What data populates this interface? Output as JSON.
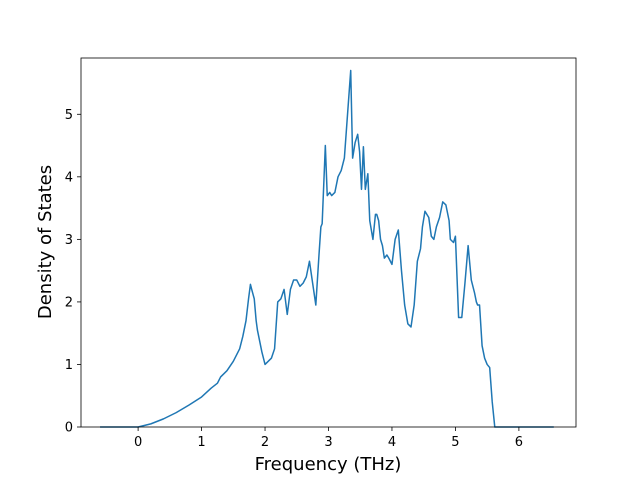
{
  "chart_data": {
    "type": "line",
    "title": "",
    "xlabel": "Frequency (THz)",
    "ylabel": "Density of States",
    "xlim": [
      -0.9,
      6.9
    ],
    "ylim": [
      0,
      5.9
    ],
    "xticks": [
      0,
      1,
      2,
      3,
      4,
      5,
      6
    ],
    "yticks": [
      0,
      1,
      2,
      3,
      4,
      5
    ],
    "grid": false,
    "legend": "none",
    "series": [
      {
        "color": "#1f77b4",
        "x": [
          -0.6,
          -0.3,
          0.0,
          0.2,
          0.4,
          0.6,
          0.8,
          1.0,
          1.15,
          1.25,
          1.3,
          1.4,
          1.5,
          1.6,
          1.65,
          1.7,
          1.74,
          1.77,
          1.79,
          1.83,
          1.86,
          1.88,
          1.92,
          1.95,
          2.0,
          2.05,
          2.1,
          2.15,
          2.2,
          2.25,
          2.3,
          2.35,
          2.4,
          2.45,
          2.5,
          2.55,
          2.6,
          2.65,
          2.7,
          2.75,
          2.8,
          2.85,
          2.88,
          2.9,
          2.95,
          2.98,
          3.02,
          3.05,
          3.1,
          3.15,
          3.2,
          3.25,
          3.3,
          3.35,
          3.38,
          3.42,
          3.46,
          3.49,
          3.52,
          3.55,
          3.58,
          3.62,
          3.65,
          3.7,
          3.72,
          3.74,
          3.76,
          3.79,
          3.82,
          3.85,
          3.88,
          3.92,
          3.95,
          4.0,
          4.05,
          4.1,
          4.15,
          4.2,
          4.25,
          4.3,
          4.35,
          4.4,
          4.45,
          4.48,
          4.52,
          4.58,
          4.62,
          4.66,
          4.7,
          4.75,
          4.8,
          4.85,
          4.9,
          4.92,
          4.97,
          5.0,
          5.05,
          5.1,
          5.15,
          5.2,
          5.25,
          5.3,
          5.33,
          5.35,
          5.38,
          5.42,
          5.46,
          5.5,
          5.54,
          5.58,
          5.62,
          5.65,
          5.68,
          5.72,
          5.76,
          5.8,
          5.84,
          5.87,
          5.89,
          5.92,
          5.96,
          6.2,
          6.55
        ],
        "y": [
          0.0,
          0.0,
          0.0,
          0.05,
          0.13,
          0.23,
          0.35,
          0.48,
          0.62,
          0.7,
          0.8,
          0.9,
          1.05,
          1.25,
          1.45,
          1.7,
          2.05,
          2.28,
          2.2,
          2.05,
          1.7,
          1.55,
          1.35,
          1.2,
          1.0,
          1.05,
          1.1,
          1.25,
          2.0,
          2.05,
          2.2,
          1.8,
          2.2,
          2.35,
          2.35,
          2.25,
          2.3,
          2.4,
          2.65,
          2.3,
          1.95,
          2.75,
          3.2,
          3.25,
          4.5,
          3.7,
          3.75,
          3.7,
          3.75,
          4.0,
          4.1,
          4.3,
          5.0,
          5.7,
          4.3,
          4.55,
          4.68,
          4.4,
          3.8,
          4.48,
          3.8,
          4.05,
          3.3,
          3.0,
          3.2,
          3.4,
          3.4,
          3.3,
          3.0,
          2.9,
          2.7,
          2.75,
          2.7,
          2.6,
          3.0,
          3.15,
          2.5,
          1.95,
          1.65,
          1.6,
          1.95,
          2.65,
          2.85,
          3.2,
          3.45,
          3.35,
          3.05,
          3.0,
          3.2,
          3.35,
          3.6,
          3.55,
          3.3,
          3.0,
          2.95,
          3.05,
          1.75,
          1.75,
          2.3,
          2.9,
          2.35,
          2.15,
          2.0,
          1.95,
          1.95,
          1.3,
          1.1,
          1.0,
          0.95,
          0.4,
          0.0,
          0.0,
          0.0,
          0.0,
          0.0,
          0.0,
          0.0,
          0.0,
          0.0,
          0.0,
          0.0,
          0.0,
          0.0
        ]
      }
    ]
  }
}
